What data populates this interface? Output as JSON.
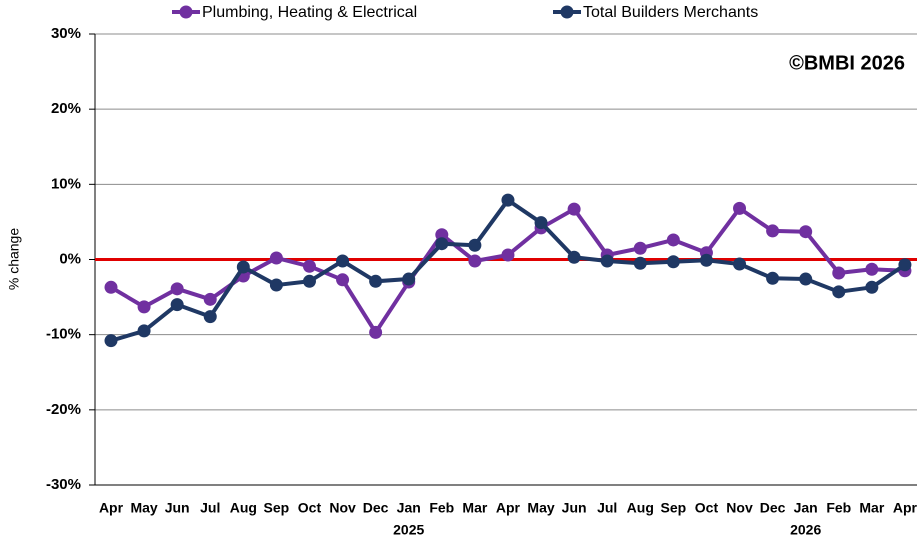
{
  "chart_data": {
    "type": "line",
    "y_label": "% change",
    "annotation": "©BMBI 2026",
    "categories": [
      "Apr",
      "May",
      "Jun",
      "Jul",
      "Aug",
      "Sep",
      "Oct",
      "Nov",
      "Dec",
      "Jan",
      "Feb",
      "Mar",
      "Apr",
      "May",
      "Jun",
      "Jul",
      "Aug",
      "Sep",
      "Oct",
      "Nov",
      "Dec",
      "Jan",
      "Feb",
      "Mar",
      "Apr"
    ],
    "years": [
      null,
      null,
      null,
      null,
      null,
      null,
      null,
      null,
      null,
      "2025",
      null,
      null,
      null,
      null,
      null,
      null,
      null,
      null,
      null,
      null,
      null,
      "2026",
      null,
      null,
      null
    ],
    "series": [
      {
        "name": "Plumbing, Heating & Electrical",
        "color": "#7030a0",
        "values": [
          -3.7,
          -6.3,
          -3.9,
          -5.3,
          -2.2,
          0.2,
          -0.9,
          -2.7,
          -9.7,
          -3.0,
          3.3,
          -0.2,
          0.6,
          4.2,
          6.7,
          0.6,
          1.5,
          2.6,
          0.9,
          6.8,
          3.8,
          3.7,
          -1.8,
          -1.3,
          -1.5
        ]
      },
      {
        "name": "Total Builders Merchants",
        "color": "#1f3864",
        "values": [
          -10.8,
          -9.5,
          -6.0,
          -7.6,
          -1.0,
          -3.4,
          -2.9,
          -0.2,
          -2.9,
          -2.6,
          2.1,
          1.9,
          7.9,
          4.9,
          0.3,
          -0.2,
          -0.5,
          -0.3,
          -0.1,
          -0.6,
          -2.5,
          -2.6,
          -4.3,
          -3.7,
          -0.7
        ]
      }
    ],
    "ylim": [
      -30,
      30
    ],
    "yticks": [
      {
        "value": -30,
        "label": "-30%"
      },
      {
        "value": -20,
        "label": "-20%"
      },
      {
        "value": -10,
        "label": "-10%"
      },
      {
        "value": 0,
        "label": "0%"
      },
      {
        "value": 10,
        "label": "10%"
      },
      {
        "value": 20,
        "label": "20%"
      },
      {
        "value": 30,
        "label": "30%"
      }
    ],
    "grid": true,
    "zero_line_color": "#e00000",
    "legend": "top"
  }
}
